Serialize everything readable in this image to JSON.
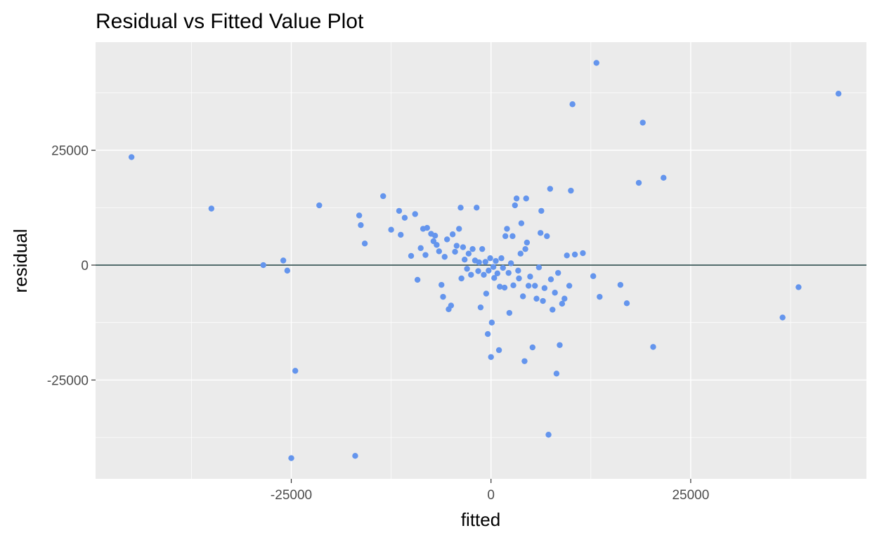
{
  "chart_data": {
    "type": "scatter",
    "title": "Residual vs Fitted Value Plot",
    "xlabel": "fitted",
    "ylabel": "residual",
    "xlim": [
      -49500,
      47000
    ],
    "ylim": [
      -46500,
      48500
    ],
    "x_ticks": [
      -25000,
      0,
      25000
    ],
    "x_tick_labels": [
      "-25000",
      "0",
      "25000"
    ],
    "y_ticks": [
      -25000,
      0,
      25000
    ],
    "y_tick_labels": [
      "-25000",
      "0",
      "25000"
    ],
    "grid": true,
    "legend": "none",
    "reference_line": {
      "y": 0,
      "color": "#2f4f4f"
    },
    "point_color": "#6495ed",
    "panel_background": "#ebebeb",
    "grid_color": "#ffffff",
    "points": [
      {
        "x": -45000,
        "y": 23500
      },
      {
        "x": -35000,
        "y": 12300
      },
      {
        "x": -28500,
        "y": 0
      },
      {
        "x": -26000,
        "y": 1000
      },
      {
        "x": -25500,
        "y": -1200
      },
      {
        "x": -25000,
        "y": -42000
      },
      {
        "x": -24500,
        "y": -23000
      },
      {
        "x": -21500,
        "y": 13000
      },
      {
        "x": -17000,
        "y": -41500
      },
      {
        "x": -16500,
        "y": 10800
      },
      {
        "x": -16300,
        "y": 8700
      },
      {
        "x": -15800,
        "y": 4700
      },
      {
        "x": -13500,
        "y": 15000
      },
      {
        "x": -12500,
        "y": 7700
      },
      {
        "x": -11500,
        "y": 11800
      },
      {
        "x": -11300,
        "y": 6600
      },
      {
        "x": -10800,
        "y": 10300
      },
      {
        "x": -10000,
        "y": 2000
      },
      {
        "x": -9500,
        "y": 11100
      },
      {
        "x": -9200,
        "y": -3200
      },
      {
        "x": -8800,
        "y": 3700
      },
      {
        "x": -8500,
        "y": 7900
      },
      {
        "x": -8200,
        "y": 2200
      },
      {
        "x": -8000,
        "y": 8100
      },
      {
        "x": -7500,
        "y": 6800
      },
      {
        "x": -7200,
        "y": 5200
      },
      {
        "x": -7000,
        "y": 6400
      },
      {
        "x": -6800,
        "y": 4400
      },
      {
        "x": -6500,
        "y": 3000
      },
      {
        "x": -6200,
        "y": -4300
      },
      {
        "x": -6000,
        "y": -6900
      },
      {
        "x": -5800,
        "y": 1800
      },
      {
        "x": -5500,
        "y": 5600
      },
      {
        "x": -5300,
        "y": -9600
      },
      {
        "x": -5000,
        "y": -8800
      },
      {
        "x": -4800,
        "y": 6700
      },
      {
        "x": -4500,
        "y": 2900
      },
      {
        "x": -4300,
        "y": 4200
      },
      {
        "x": -4000,
        "y": 7900
      },
      {
        "x": -3800,
        "y": 12500
      },
      {
        "x": -3700,
        "y": -2900
      },
      {
        "x": -3500,
        "y": 3900
      },
      {
        "x": -3300,
        "y": 1200
      },
      {
        "x": -3000,
        "y": -800
      },
      {
        "x": -2800,
        "y": 2500
      },
      {
        "x": -2500,
        "y": -2100
      },
      {
        "x": -2300,
        "y": 3500
      },
      {
        "x": -2000,
        "y": 1000
      },
      {
        "x": -1800,
        "y": 12500
      },
      {
        "x": -1600,
        "y": -1300
      },
      {
        "x": -1500,
        "y": 600
      },
      {
        "x": -1300,
        "y": -9200
      },
      {
        "x": -1100,
        "y": 3500
      },
      {
        "x": -900,
        "y": -2100
      },
      {
        "x": -700,
        "y": 700
      },
      {
        "x": -600,
        "y": -6200
      },
      {
        "x": -400,
        "y": -15000
      },
      {
        "x": -300,
        "y": -1200
      },
      {
        "x": -100,
        "y": 1500
      },
      {
        "x": 0,
        "y": -20000
      },
      {
        "x": 100,
        "y": -12500
      },
      {
        "x": 300,
        "y": -400
      },
      {
        "x": 400,
        "y": -2800
      },
      {
        "x": 600,
        "y": 900
      },
      {
        "x": 800,
        "y": -1800
      },
      {
        "x": 1000,
        "y": -18500
      },
      {
        "x": 1100,
        "y": -4700
      },
      {
        "x": 1300,
        "y": 1500
      },
      {
        "x": 1500,
        "y": -600
      },
      {
        "x": 1700,
        "y": -4900
      },
      {
        "x": 1800,
        "y": 6300
      },
      {
        "x": 2000,
        "y": 7900
      },
      {
        "x": 2200,
        "y": -1700
      },
      {
        "x": 2300,
        "y": -10400
      },
      {
        "x": 2500,
        "y": 400
      },
      {
        "x": 2700,
        "y": 6300
      },
      {
        "x": 2800,
        "y": -4400
      },
      {
        "x": 3000,
        "y": 13000
      },
      {
        "x": 3200,
        "y": 14500
      },
      {
        "x": 3400,
        "y": -1200
      },
      {
        "x": 3500,
        "y": -2900
      },
      {
        "x": 3700,
        "y": 2500
      },
      {
        "x": 3800,
        "y": 9100
      },
      {
        "x": 4000,
        "y": -6800
      },
      {
        "x": 4200,
        "y": -20900
      },
      {
        "x": 4300,
        "y": 3500
      },
      {
        "x": 4400,
        "y": 14500
      },
      {
        "x": 4500,
        "y": 4900
      },
      {
        "x": 4700,
        "y": -4500
      },
      {
        "x": 4900,
        "y": -2500
      },
      {
        "x": 5200,
        "y": -17900
      },
      {
        "x": 5500,
        "y": -4500
      },
      {
        "x": 5700,
        "y": -7300
      },
      {
        "x": 6000,
        "y": -500
      },
      {
        "x": 6200,
        "y": 7000
      },
      {
        "x": 6300,
        "y": 11800
      },
      {
        "x": 6500,
        "y": -7800
      },
      {
        "x": 6700,
        "y": -5000
      },
      {
        "x": 7000,
        "y": 6300
      },
      {
        "x": 7200,
        "y": -36900
      },
      {
        "x": 7400,
        "y": 16600
      },
      {
        "x": 7500,
        "y": -3100
      },
      {
        "x": 7700,
        "y": -9700
      },
      {
        "x": 8000,
        "y": -6000
      },
      {
        "x": 8200,
        "y": -23600
      },
      {
        "x": 8400,
        "y": -1700
      },
      {
        "x": 8600,
        "y": -17400
      },
      {
        "x": 8900,
        "y": -8400
      },
      {
        "x": 9200,
        "y": -7300
      },
      {
        "x": 9500,
        "y": 2100
      },
      {
        "x": 9800,
        "y": -4500
      },
      {
        "x": 10000,
        "y": 16200
      },
      {
        "x": 10200,
        "y": 35000
      },
      {
        "x": 10500,
        "y": 2300
      },
      {
        "x": 11500,
        "y": 2600
      },
      {
        "x": 12800,
        "y": -2400
      },
      {
        "x": 13200,
        "y": 44000
      },
      {
        "x": 13600,
        "y": -6900
      },
      {
        "x": 16200,
        "y": -4300
      },
      {
        "x": 17000,
        "y": -8300
      },
      {
        "x": 18500,
        "y": 17900
      },
      {
        "x": 19000,
        "y": 31000
      },
      {
        "x": 20300,
        "y": -17800
      },
      {
        "x": 21600,
        "y": 19000
      },
      {
        "x": 36500,
        "y": -11400
      },
      {
        "x": 38500,
        "y": -4800
      },
      {
        "x": 43500,
        "y": 37300
      }
    ]
  }
}
